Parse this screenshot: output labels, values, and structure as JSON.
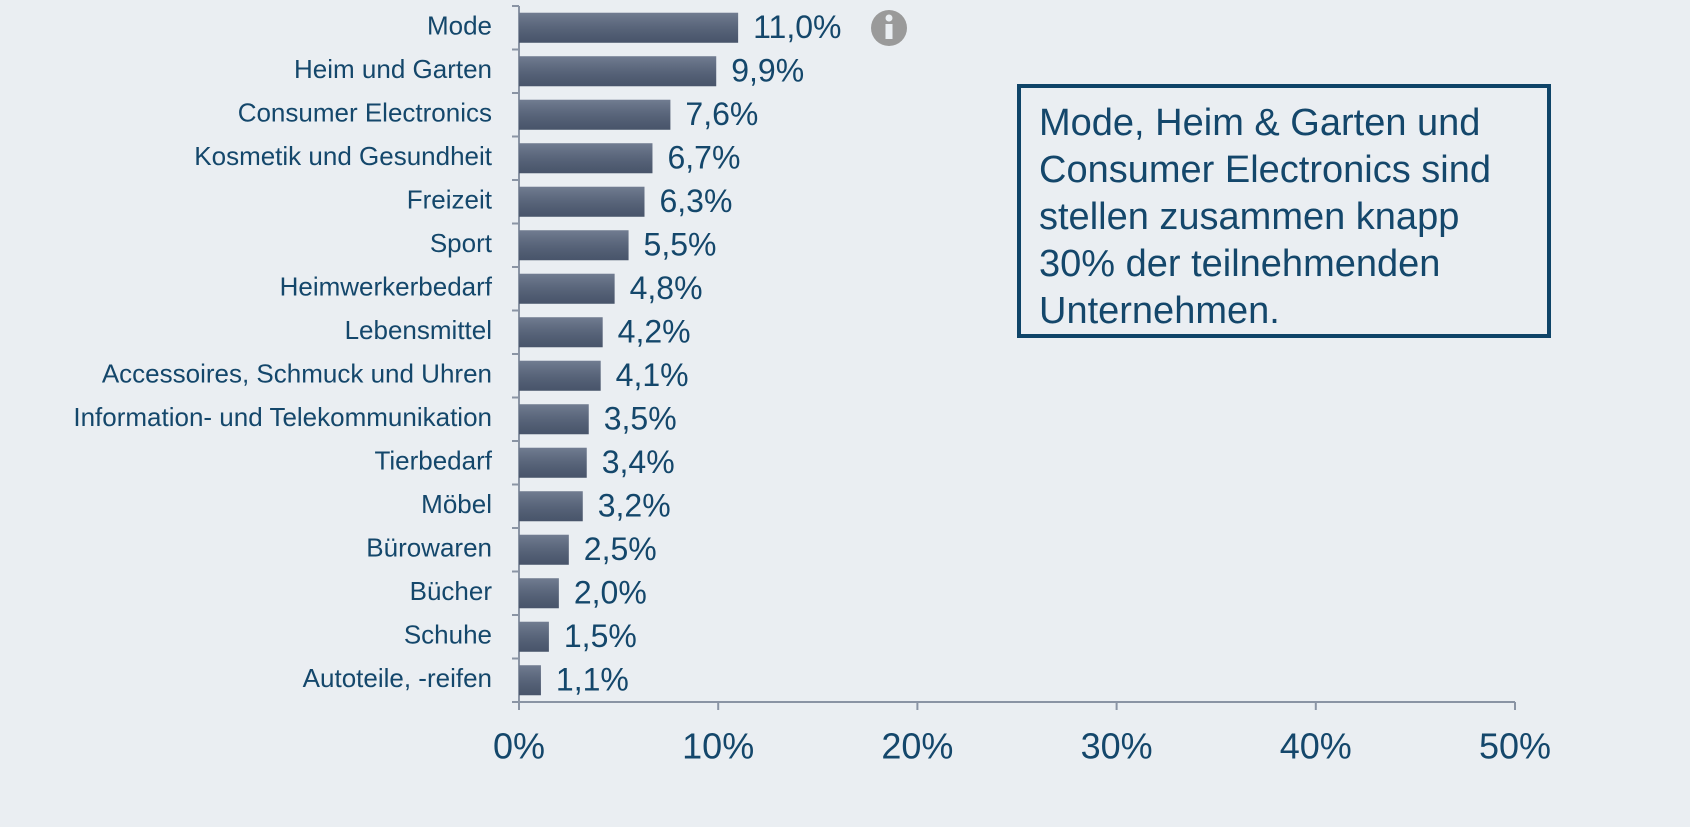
{
  "chart_data": {
    "type": "bar",
    "orientation": "horizontal",
    "categories": [
      "Mode",
      "Heim und Garten",
      "Consumer Electronics",
      "Kosmetik und Gesundheit",
      "Freizeit",
      "Sport",
      "Heimwerkerbedarf",
      "Lebensmittel",
      "Accessoires, Schmuck und Uhren",
      "Information- und Telekommunikation",
      "Tierbedarf",
      "Möbel",
      "Bürowaren",
      "Bücher",
      "Schuhe",
      "Autoteile, -reifen"
    ],
    "values": [
      11.0,
      9.9,
      7.6,
      6.7,
      6.3,
      5.5,
      4.8,
      4.2,
      4.1,
      3.5,
      3.4,
      3.2,
      2.5,
      2.0,
      1.5,
      1.1
    ],
    "value_labels": [
      "11,0%",
      "9,9%",
      "7,6%",
      "6,7%",
      "6,3%",
      "5,5%",
      "4,8%",
      "4,2%",
      "4,1%",
      "3,5%",
      "3,4%",
      "3,2%",
      "2,5%",
      "2,0%",
      "1,5%",
      "1,1%"
    ],
    "color": "#526079",
    "xlim": [
      0,
      50
    ],
    "xticks": [
      {
        "value": 0,
        "label": "0%"
      },
      {
        "value": 10,
        "label": "10%"
      },
      {
        "value": 20,
        "label": "20%"
      },
      {
        "value": 30,
        "label": "30%"
      },
      {
        "value": 40,
        "label": "40%"
      },
      {
        "value": 50,
        "label": "50%"
      }
    ],
    "grid": false,
    "annotation": "Mode, Heim & Garten und Consumer Electronics sind stellen zusammen knapp 30% der teilnehmenden Unternehmen."
  }
}
